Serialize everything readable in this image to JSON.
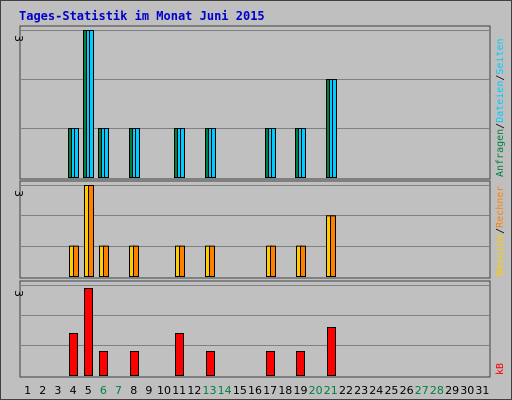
{
  "chart_data": {
    "type": "bar",
    "title": "Tages-Statistik im Monat Juni 2015",
    "categories": [
      "1",
      "2",
      "3",
      "4",
      "5",
      "6",
      "7",
      "8",
      "9",
      "10",
      "11",
      "12",
      "13",
      "14",
      "15",
      "16",
      "17",
      "18",
      "19",
      "20",
      "21",
      "22",
      "23",
      "24",
      "25",
      "26",
      "27",
      "28",
      "29",
      "30",
      "31"
    ],
    "weekend_days": [
      6,
      7,
      13,
      14,
      20,
      21,
      27,
      28
    ],
    "grid": true,
    "colors": {
      "background": "#c0c0c0",
      "gridline": "#808080",
      "title": "#0000cc",
      "weekday_label": "#000000",
      "weekend_label": "#008040",
      "requests": "#008040",
      "files": "#00ccff",
      "pages": "#00ccff",
      "visits": "#ffcc00",
      "sites": "#ff8000",
      "kbytes": "#ff0000"
    },
    "panels": [
      {
        "name": "hits-files-pages",
        "ymax_label": "3",
        "ylim": [
          0,
          3
        ],
        "legend": [
          {
            "text": "Anfragen",
            "color_key": "requests"
          },
          {
            "text": "/",
            "color_key": null
          },
          {
            "text": "Dateien",
            "color_key": "files"
          },
          {
            "text": "/",
            "color_key": null
          },
          {
            "text": "Seiten",
            "color_key": "pages"
          }
        ],
        "series": [
          {
            "name": "Anfragen",
            "color_key": "requests",
            "values": [
              0,
              0,
              0,
              1,
              3,
              1,
              0,
              1,
              0,
              0,
              1,
              0,
              1,
              0,
              0,
              0,
              1,
              0,
              1,
              0,
              2,
              0,
              0,
              0,
              0,
              0,
              0,
              0,
              0,
              0,
              0
            ]
          },
          {
            "name": "Dateien",
            "color_key": "files",
            "values": [
              0,
              0,
              0,
              1,
              3,
              1,
              0,
              1,
              0,
              0,
              1,
              0,
              1,
              0,
              0,
              0,
              1,
              0,
              1,
              0,
              2,
              0,
              0,
              0,
              0,
              0,
              0,
              0,
              0,
              0,
              0
            ]
          },
          {
            "name": "Seiten",
            "color_key": "pages",
            "values": [
              0,
              0,
              0,
              1,
              3,
              1,
              0,
              1,
              0,
              0,
              1,
              0,
              1,
              0,
              0,
              0,
              1,
              0,
              1,
              0,
              2,
              0,
              0,
              0,
              0,
              0,
              0,
              0,
              0,
              0,
              0
            ]
          }
        ]
      },
      {
        "name": "visits-sites",
        "ymax_label": "3",
        "ylim": [
          0,
          3
        ],
        "legend": [
          {
            "text": "Besuche",
            "color_key": "visits"
          },
          {
            "text": "/",
            "color_key": null
          },
          {
            "text": "Rechner",
            "color_key": "sites"
          }
        ],
        "series": [
          {
            "name": "Besuche",
            "color_key": "visits",
            "values": [
              0,
              0,
              0,
              1,
              3,
              1,
              0,
              1,
              0,
              0,
              1,
              0,
              1,
              0,
              0,
              0,
              1,
              0,
              1,
              0,
              2,
              0,
              0,
              0,
              0,
              0,
              0,
              0,
              0,
              0,
              0
            ]
          },
          {
            "name": "Rechner",
            "color_key": "sites",
            "values": [
              0,
              0,
              0,
              1,
              3,
              1,
              0,
              1,
              0,
              0,
              1,
              0,
              1,
              0,
              0,
              0,
              1,
              0,
              1,
              0,
              2,
              0,
              0,
              0,
              0,
              0,
              0,
              0,
              0,
              0,
              0
            ]
          }
        ]
      },
      {
        "name": "kbytes",
        "ymax_label": "3",
        "ylim": [
          0,
          3
        ],
        "legend": [
          {
            "text": "kB",
            "color_key": "kbytes"
          }
        ],
        "series": [
          {
            "name": "kB",
            "color_key": "kbytes",
            "values": [
              0,
              0,
              0,
              1.4,
              2.9,
              0.8,
              0,
              0.8,
              0,
              0,
              1.4,
              0,
              0.8,
              0,
              0,
              0,
              0.8,
              0,
              0.8,
              0,
              1.6,
              0,
              0,
              0,
              0,
              0,
              0,
              0,
              0,
              0,
              0
            ]
          }
        ]
      }
    ]
  }
}
